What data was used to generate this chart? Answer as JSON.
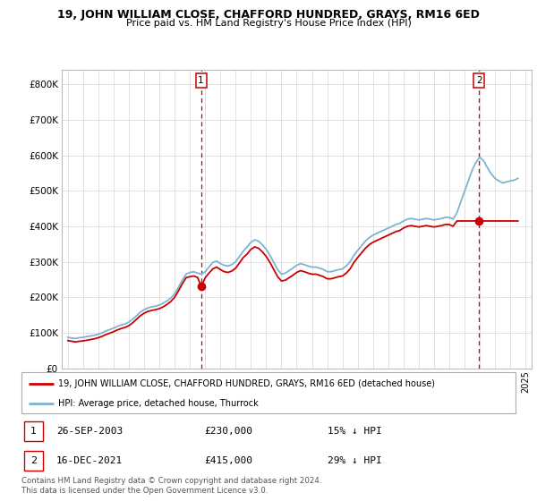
{
  "title": "19, JOHN WILLIAM CLOSE, CHAFFORD HUNDRED, GRAYS, RM16 6ED",
  "subtitle": "Price paid vs. HM Land Registry's House Price Index (HPI)",
  "ytick_values": [
    0,
    100000,
    200000,
    300000,
    400000,
    500000,
    600000,
    700000,
    800000
  ],
  "ylim": [
    0,
    840000
  ],
  "xlim_start": 1994.6,
  "xlim_end": 2025.4,
  "transaction1": {
    "date": 2003.73,
    "price": 230000,
    "label": "1"
  },
  "transaction2": {
    "date": 2021.96,
    "price": 415000,
    "label": "2"
  },
  "legend_line1": "19, JOHN WILLIAM CLOSE, CHAFFORD HUNDRED, GRAYS, RM16 6ED (detached house)",
  "legend_line2": "HPI: Average price, detached house, Thurrock",
  "annotation1_date": "26-SEP-2003",
  "annotation1_price": "£230,000",
  "annotation1_pct": "15% ↓ HPI",
  "annotation2_date": "16-DEC-2021",
  "annotation2_price": "£415,000",
  "annotation2_pct": "29% ↓ HPI",
  "footer": "Contains HM Land Registry data © Crown copyright and database right 2024.\nThis data is licensed under the Open Government Licence v3.0.",
  "line_color_house": "#cc0000",
  "line_color_hpi": "#7fb3d3",
  "grid_color": "#dddddd",
  "hpi_data_x": [
    1995.0,
    1995.25,
    1995.5,
    1995.75,
    1996.0,
    1996.25,
    1996.5,
    1996.75,
    1997.0,
    1997.25,
    1997.5,
    1997.75,
    1998.0,
    1998.25,
    1998.5,
    1998.75,
    1999.0,
    1999.25,
    1999.5,
    1999.75,
    2000.0,
    2000.25,
    2000.5,
    2000.75,
    2001.0,
    2001.25,
    2001.5,
    2001.75,
    2002.0,
    2002.25,
    2002.5,
    2002.75,
    2003.0,
    2003.25,
    2003.5,
    2003.75,
    2004.0,
    2004.25,
    2004.5,
    2004.75,
    2005.0,
    2005.25,
    2005.5,
    2005.75,
    2006.0,
    2006.25,
    2006.5,
    2006.75,
    2007.0,
    2007.25,
    2007.5,
    2007.75,
    2008.0,
    2008.25,
    2008.5,
    2008.75,
    2009.0,
    2009.25,
    2009.5,
    2009.75,
    2010.0,
    2010.25,
    2010.5,
    2010.75,
    2011.0,
    2011.25,
    2011.5,
    2011.75,
    2012.0,
    2012.25,
    2012.5,
    2012.75,
    2013.0,
    2013.25,
    2013.5,
    2013.75,
    2014.0,
    2014.25,
    2014.5,
    2014.75,
    2015.0,
    2015.25,
    2015.5,
    2015.75,
    2016.0,
    2016.25,
    2016.5,
    2016.75,
    2017.0,
    2017.25,
    2017.5,
    2017.75,
    2018.0,
    2018.25,
    2018.5,
    2018.75,
    2019.0,
    2019.25,
    2019.5,
    2019.75,
    2020.0,
    2020.25,
    2020.5,
    2020.75,
    2021.0,
    2021.25,
    2021.5,
    2021.75,
    2022.0,
    2022.25,
    2022.5,
    2022.75,
    2023.0,
    2023.25,
    2023.5,
    2023.75,
    2024.0,
    2024.25,
    2024.5
  ],
  "hpi_data_y": [
    87000,
    85000,
    84000,
    86000,
    87000,
    89000,
    91000,
    93000,
    96000,
    100000,
    105000,
    109000,
    113000,
    118000,
    122000,
    125000,
    130000,
    138000,
    148000,
    158000,
    165000,
    170000,
    173000,
    175000,
    178000,
    183000,
    190000,
    198000,
    210000,
    228000,
    248000,
    265000,
    270000,
    272000,
    268000,
    265000,
    272000,
    285000,
    298000,
    302000,
    295000,
    290000,
    288000,
    292000,
    300000,
    315000,
    330000,
    342000,
    355000,
    362000,
    358000,
    348000,
    335000,
    318000,
    298000,
    278000,
    265000,
    268000,
    275000,
    282000,
    290000,
    295000,
    292000,
    288000,
    285000,
    285000,
    282000,
    278000,
    272000,
    272000,
    275000,
    278000,
    280000,
    288000,
    300000,
    318000,
    332000,
    345000,
    358000,
    368000,
    375000,
    380000,
    385000,
    390000,
    395000,
    400000,
    405000,
    408000,
    415000,
    420000,
    422000,
    420000,
    418000,
    420000,
    422000,
    420000,
    418000,
    420000,
    422000,
    425000,
    425000,
    420000,
    438000,
    468000,
    498000,
    528000,
    558000,
    580000,
    595000,
    585000,
    565000,
    548000,
    535000,
    528000,
    522000,
    525000,
    528000,
    530000,
    535000
  ],
  "house_data_x": [
    1995.0,
    1995.25,
    1995.5,
    1995.75,
    1996.0,
    1996.25,
    1996.5,
    1996.75,
    1997.0,
    1997.25,
    1997.5,
    1997.75,
    1998.0,
    1998.25,
    1998.5,
    1998.75,
    1999.0,
    1999.25,
    1999.5,
    1999.75,
    2000.0,
    2000.25,
    2000.5,
    2000.75,
    2001.0,
    2001.25,
    2001.5,
    2001.75,
    2002.0,
    2002.25,
    2002.5,
    2002.75,
    2003.0,
    2003.25,
    2003.5,
    2003.75,
    2004.0,
    2004.25,
    2004.5,
    2004.75,
    2005.0,
    2005.25,
    2005.5,
    2005.75,
    2006.0,
    2006.25,
    2006.5,
    2006.75,
    2007.0,
    2007.25,
    2007.5,
    2007.75,
    2008.0,
    2008.25,
    2008.5,
    2008.75,
    2009.0,
    2009.25,
    2009.5,
    2009.75,
    2010.0,
    2010.25,
    2010.5,
    2010.75,
    2011.0,
    2011.25,
    2011.5,
    2011.75,
    2012.0,
    2012.25,
    2012.5,
    2012.75,
    2013.0,
    2013.25,
    2013.5,
    2013.75,
    2014.0,
    2014.25,
    2014.5,
    2014.75,
    2015.0,
    2015.25,
    2015.5,
    2015.75,
    2016.0,
    2016.25,
    2016.5,
    2016.75,
    2017.0,
    2017.25,
    2017.5,
    2017.75,
    2018.0,
    2018.25,
    2018.5,
    2018.75,
    2019.0,
    2019.25,
    2019.5,
    2019.75,
    2020.0,
    2020.25,
    2020.5,
    2020.75,
    2021.0,
    2021.25,
    2021.5,
    2021.75,
    2022.0,
    2022.25,
    2022.5,
    2022.75,
    2023.0,
    2023.25,
    2023.5,
    2023.75,
    2024.0,
    2024.25,
    2024.5
  ],
  "house_data_y": [
    78000,
    76000,
    74000,
    76000,
    77000,
    79000,
    81000,
    83000,
    86000,
    90000,
    95000,
    99000,
    103000,
    108000,
    112000,
    115000,
    120000,
    128000,
    138000,
    148000,
    155000,
    160000,
    163000,
    165000,
    168000,
    173000,
    180000,
    188000,
    200000,
    218000,
    238000,
    255000,
    258000,
    260000,
    256000,
    230000,
    255000,
    268000,
    280000,
    285000,
    278000,
    272000,
    270000,
    274000,
    282000,
    297000,
    312000,
    322000,
    335000,
    342000,
    338000,
    328000,
    315000,
    298000,
    278000,
    258000,
    246000,
    248000,
    255000,
    262000,
    270000,
    275000,
    272000,
    268000,
    265000,
    265000,
    262000,
    258000,
    252000,
    252000,
    255000,
    258000,
    260000,
    268000,
    280000,
    298000,
    312000,
    325000,
    338000,
    348000,
    355000,
    360000,
    365000,
    370000,
    375000,
    380000,
    385000,
    388000,
    395000,
    400000,
    402000,
    400000,
    398000,
    400000,
    402000,
    400000,
    398000,
    400000,
    402000,
    405000,
    405000,
    400000,
    415000,
    415000,
    415000,
    415000,
    415000,
    415000,
    415000,
    415000,
    415000,
    415000,
    415000,
    415000,
    415000,
    415000,
    415000,
    415000,
    415000
  ]
}
